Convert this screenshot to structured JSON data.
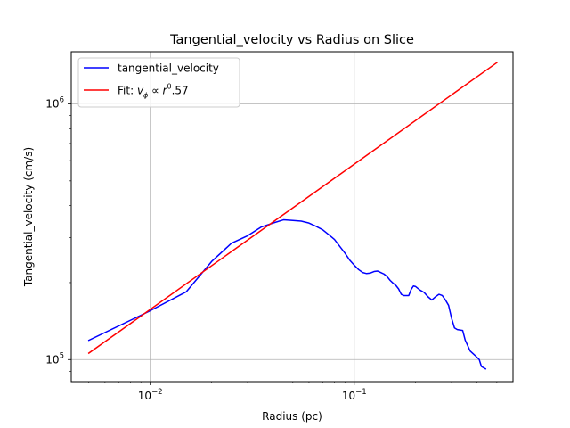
{
  "chart_data": {
    "type": "line",
    "title": "Tangential_velocity vs Radius on Slice",
    "xlabel": "Radius (pc)",
    "ylabel": "Tangential_velocity (cm/s)",
    "xscale": "log",
    "yscale": "log",
    "xlim": [
      0.0041,
      0.6
    ],
    "ylim": [
      82000,
      1600000
    ],
    "grid": true,
    "legend_position": "top-left",
    "x_ticks": [
      {
        "value": 0.01,
        "base": "10",
        "exp": "−2"
      },
      {
        "value": 0.1,
        "base": "10",
        "exp": "−1"
      }
    ],
    "y_ticks": [
      {
        "value": 100000,
        "base": "10",
        "exp": "5"
      },
      {
        "value": 1000000,
        "base": "10",
        "exp": "6"
      }
    ],
    "series": [
      {
        "name": "tangential_velocity",
        "color": "#0000ff",
        "x": [
          0.005,
          0.0098,
          0.015,
          0.02,
          0.025,
          0.03,
          0.035,
          0.04,
          0.045,
          0.05,
          0.055,
          0.06,
          0.065,
          0.07,
          0.075,
          0.08,
          0.085,
          0.09,
          0.095,
          0.1,
          0.105,
          0.11,
          0.115,
          0.12,
          0.125,
          0.13,
          0.135,
          0.14,
          0.145,
          0.15,
          0.155,
          0.16,
          0.165,
          0.17,
          0.175,
          0.18,
          0.185,
          0.19,
          0.195,
          0.2,
          0.21,
          0.22,
          0.23,
          0.24,
          0.25,
          0.26,
          0.27,
          0.28,
          0.29,
          0.3,
          0.31,
          0.32,
          0.34,
          0.35,
          0.37,
          0.39,
          0.41,
          0.42,
          0.44
        ],
        "y": [
          119000,
          154000,
          184000,
          242000,
          285000,
          305000,
          330000,
          342000,
          352000,
          350000,
          348000,
          342000,
          332000,
          322000,
          308000,
          295000,
          277000,
          261000,
          245000,
          234000,
          225000,
          219000,
          217000,
          218000,
          221000,
          222000,
          219000,
          216000,
          211000,
          204000,
          199000,
          195000,
          189000,
          180000,
          178000,
          178000,
          178000,
          188000,
          194000,
          193000,
          187000,
          183000,
          176000,
          171000,
          176000,
          180000,
          178000,
          171000,
          163000,
          145000,
          133000,
          131000,
          130000,
          119000,
          108000,
          104000,
          100000,
          94000,
          92000
        ]
      },
      {
        "name": "Fit: v_φ ∝ r^0.57",
        "color": "#ff0000",
        "x": [
          0.005,
          0.5
        ],
        "y": [
          106000,
          1450000
        ]
      }
    ]
  },
  "legend": {
    "entries": [
      {
        "label": "tangential_velocity",
        "color": "#0000ff"
      },
      {
        "label_prefix": "Fit: ",
        "math_v": "v",
        "math_sub": "ϕ",
        "math_rel": " ∝ ",
        "math_r": "r",
        "math_sup": "0",
        "label_suffix": ".57",
        "color": "#ff0000"
      }
    ]
  },
  "colors": {
    "grid": "#b0b0b0",
    "axes": "#000000",
    "legend_border": "#cccccc"
  }
}
